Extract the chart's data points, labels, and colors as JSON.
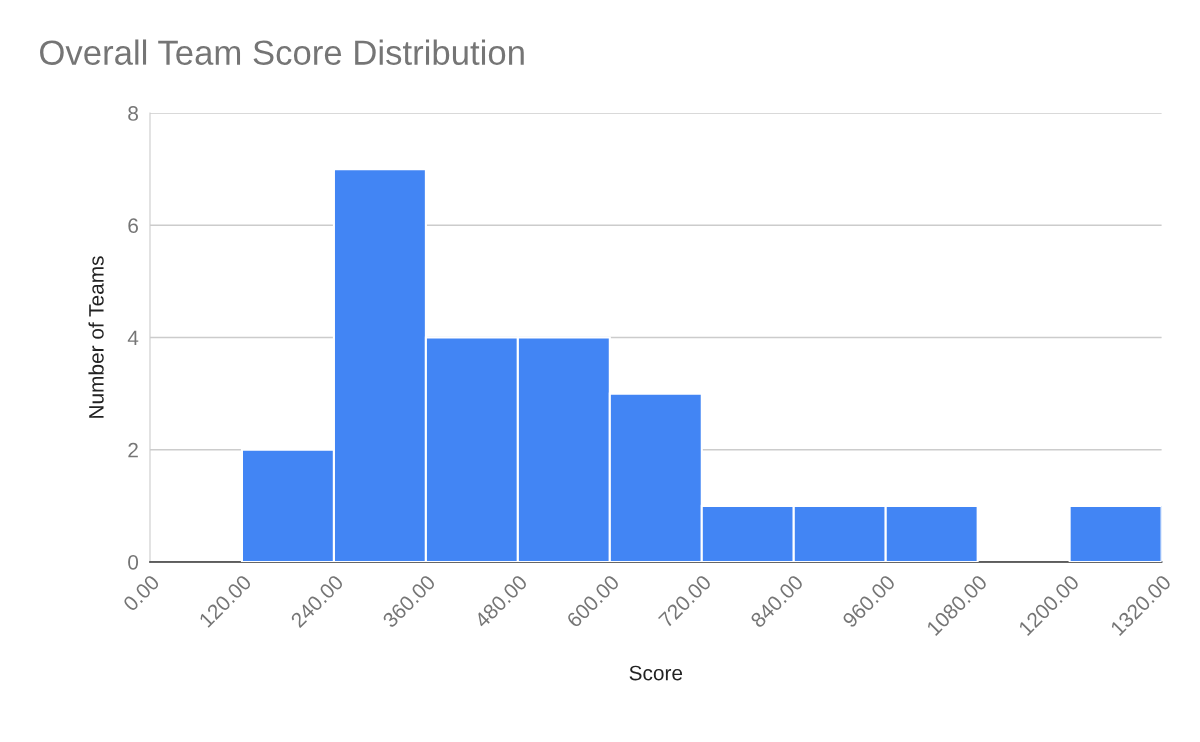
{
  "chart_data": {
    "type": "histogram",
    "title": "Overall Team Score Distribution",
    "xlabel": "Score",
    "ylabel": "Number of Teams",
    "bins": [
      0,
      120,
      240,
      360,
      480,
      600,
      720,
      840,
      960,
      1080,
      1200,
      1320
    ],
    "values": [
      0,
      2,
      7,
      4,
      4,
      3,
      1,
      1,
      1,
      0,
      1
    ],
    "color": "#4285f4",
    "xlim": [
      0,
      1320
    ],
    "xticks": [
      {
        "value": 0,
        "label": "0.00"
      },
      {
        "value": 120,
        "label": "120.00"
      },
      {
        "value": 240,
        "label": "240.00"
      },
      {
        "value": 360,
        "label": "360.00"
      },
      {
        "value": 480,
        "label": "480.00"
      },
      {
        "value": 600,
        "label": "600.00"
      },
      {
        "value": 720,
        "label": "720.00"
      },
      {
        "value": 840,
        "label": "840.00"
      },
      {
        "value": 960,
        "label": "960.00"
      },
      {
        "value": 1080,
        "label": "1080.00"
      },
      {
        "value": 1200,
        "label": "1200.00"
      },
      {
        "value": 1320,
        "label": "1320.00"
      }
    ],
    "ylim": [
      0,
      8
    ],
    "yticks": [
      0,
      2,
      4,
      6,
      8
    ],
    "grid": "y",
    "legend": false
  }
}
